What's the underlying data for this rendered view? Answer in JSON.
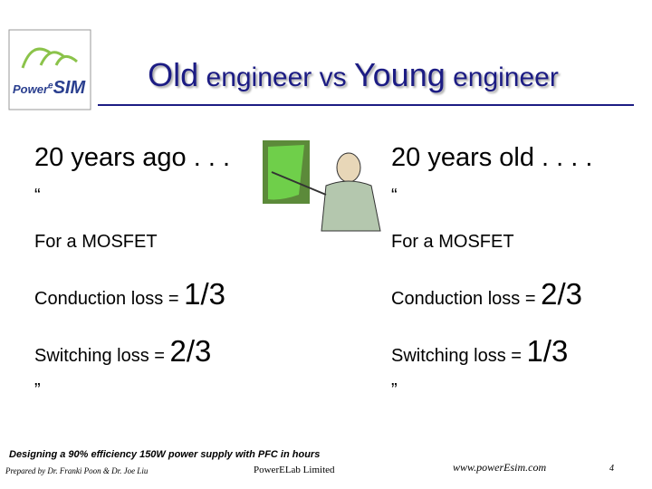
{
  "logo": {
    "parts": [
      "Power",
      "e",
      "SIM"
    ]
  },
  "title": {
    "parts": [
      "Old",
      " engineer vs ",
      "Young",
      " engineer"
    ]
  },
  "left": {
    "heading": "20 years ago . . .",
    "open_quote": "“",
    "subject": "For a MOSFET",
    "conduction_label": "Conduction loss = ",
    "conduction_value": "1/3",
    "switching_label": "Switching loss = ",
    "switching_value": "2/3",
    "close_quote": "”"
  },
  "right": {
    "heading": "20 years old . . . .",
    "open_quote": "“",
    "subject": "For a MOSFET",
    "conduction_label": "Conduction loss = ",
    "conduction_value": "2/3",
    "switching_label": "Switching loss = ",
    "switching_value": "1/3",
    "close_quote": "”"
  },
  "footer": {
    "tagline": "Designing a 90% efficiency 150W power supply with PFC in hours",
    "authors": "Prepared by Dr. Franki Poon & Dr. Joe Liu",
    "company": "PowerELab Limited",
    "website": "www.powerEsim.com",
    "page": "4"
  }
}
